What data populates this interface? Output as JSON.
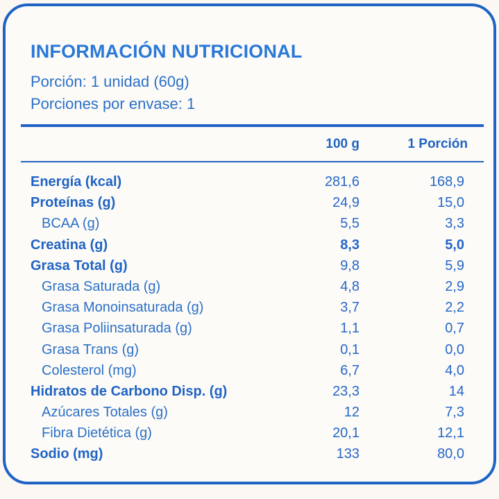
{
  "panel": {
    "title": "INFORMACIÓN NUTRICIONAL",
    "serving_size": "Porción: 1 unidad (60g)",
    "servings_per_pack": "Porciones por envase: 1"
  },
  "table": {
    "columns": [
      "100 g",
      "1 Porción"
    ],
    "rows": [
      {
        "label": "Energía (kcal)",
        "per_100g": "281,6",
        "per_portion": "168,9",
        "bold": true,
        "sub": false
      },
      {
        "label": "Proteínas (g)",
        "per_100g": "24,9",
        "per_portion": "15,0",
        "bold": true,
        "sub": false
      },
      {
        "label": "BCAA (g)",
        "per_100g": "5,5",
        "per_portion": "3,3",
        "bold": false,
        "sub": true
      },
      {
        "label": "Creatina (g)",
        "per_100g": "8,3",
        "per_portion": "5,0",
        "bold": true,
        "sub": false
      },
      {
        "label": "Grasa Total (g)",
        "per_100g": "9,8",
        "per_portion": "5,9",
        "bold": true,
        "sub": false
      },
      {
        "label": "Grasa Saturada (g)",
        "per_100g": "4,8",
        "per_portion": "2,9",
        "bold": false,
        "sub": true
      },
      {
        "label": "Grasa Monoinsaturada (g)",
        "per_100g": "3,7",
        "per_portion": "2,2",
        "bold": false,
        "sub": true
      },
      {
        "label": "Grasa Poliinsaturada (g)",
        "per_100g": "1,1",
        "per_portion": "0,7",
        "bold": false,
        "sub": true
      },
      {
        "label": "Grasa Trans (g)",
        "per_100g": "0,1",
        "per_portion": "0,0",
        "bold": false,
        "sub": true
      },
      {
        "label": "Colesterol (mg)",
        "per_100g": "6,7",
        "per_portion": "4,0",
        "bold": false,
        "sub": true
      },
      {
        "label": "Hidratos de Carbono Disp. (g)",
        "per_100g": "23,3",
        "per_portion": "14",
        "bold": true,
        "sub": false
      },
      {
        "label": "Azúcares Totales (g)",
        "per_100g": "12",
        "per_portion": "7,3",
        "bold": false,
        "sub": true
      },
      {
        "label": "Fibra Dietética (g)",
        "per_100g": "20,1",
        "per_portion": "12,1",
        "bold": false,
        "sub": true
      },
      {
        "label": "Sodio (mg)",
        "per_100g": "133",
        "per_portion": "80,0",
        "bold": true,
        "sub": false
      }
    ]
  },
  "colors": {
    "accent": "#1f63c4",
    "text": "#2566c8",
    "background": "#fdfbf7"
  }
}
